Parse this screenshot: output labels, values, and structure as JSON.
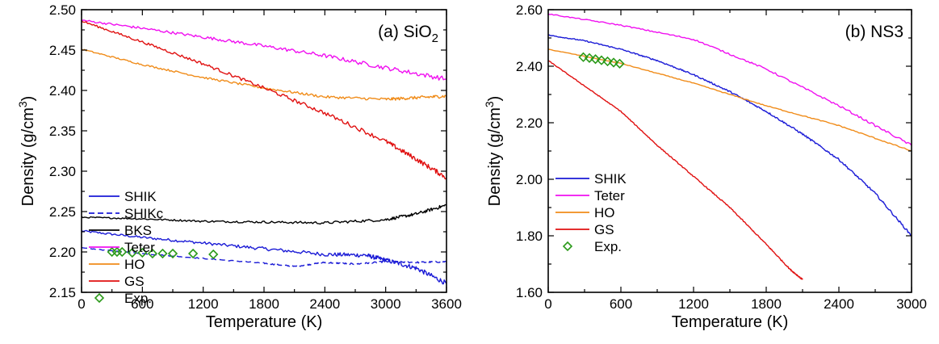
{
  "chart_data": [
    {
      "type": "line",
      "title": "(a) SiO",
      "title_subscript": "2",
      "xlabel": "Temperature (K)",
      "ylabel": "Density (g/cm",
      "ylabel_superscript": "3",
      "ylabel_suffix": ")",
      "xlim": [
        0,
        3600
      ],
      "ylim": [
        2.15,
        2.5
      ],
      "xticks": [
        "0",
        "600",
        "1200",
        "1800",
        "2400",
        "3000",
        "3600"
      ],
      "yticks": [
        "2.15",
        "2.20",
        "2.25",
        "2.30",
        "2.35",
        "2.40",
        "2.45",
        "2.50"
      ],
      "legend_placement": "center-left",
      "series": [
        {
          "name": "SHIK",
          "color": "#1a1ad6",
          "style": "solid",
          "noise": 0.003,
          "x": [
            0,
            600,
            1200,
            1800,
            2400,
            2800,
            3000,
            3300,
            3600
          ],
          "y": [
            2.226,
            2.218,
            2.211,
            2.204,
            2.197,
            2.196,
            2.19,
            2.18,
            2.161
          ]
        },
        {
          "name": "SHIKc",
          "color": "#1a1ad6",
          "style": "dashed",
          "noise": 0.001,
          "x": [
            0,
            600,
            1200,
            1800,
            2100,
            2400,
            2700,
            3000,
            3300,
            3600
          ],
          "y": [
            2.205,
            2.198,
            2.192,
            2.186,
            2.182,
            2.187,
            2.185,
            2.188,
            2.187,
            2.188
          ]
        },
        {
          "name": "BKS",
          "color": "#000000",
          "style": "solid",
          "noise": 0.002,
          "x": [
            0,
            600,
            1200,
            1800,
            2400,
            3000,
            3300,
            3600
          ],
          "y": [
            2.243,
            2.241,
            2.238,
            2.237,
            2.236,
            2.24,
            2.247,
            2.258
          ]
        },
        {
          "name": "Teter",
          "color": "#f010f0",
          "style": "solid",
          "noise": 0.003,
          "x": [
            0,
            600,
            1200,
            1800,
            2400,
            3000,
            3600
          ],
          "y": [
            2.487,
            2.477,
            2.466,
            2.455,
            2.443,
            2.428,
            2.414
          ]
        },
        {
          "name": "HO",
          "color": "#f08c1a",
          "style": "solid",
          "noise": 0.002,
          "x": [
            0,
            600,
            1200,
            1800,
            2400,
            3000,
            3300,
            3600
          ],
          "y": [
            2.451,
            2.432,
            2.416,
            2.403,
            2.392,
            2.389,
            2.391,
            2.393
          ]
        },
        {
          "name": "GS",
          "color": "#e01010",
          "style": "solid",
          "noise": 0.003,
          "x": [
            0,
            600,
            1200,
            1800,
            2400,
            3000,
            3300,
            3600
          ],
          "y": [
            2.486,
            2.46,
            2.433,
            2.403,
            2.372,
            2.337,
            2.315,
            2.292
          ]
        }
      ],
      "experiment": {
        "name": "Exp.",
        "color": "#2b9a1a",
        "x": [
          300,
          350,
          400,
          500,
          600,
          700,
          800,
          900,
          1100,
          1300
        ],
        "y": [
          2.2,
          2.2,
          2.2,
          2.199,
          2.199,
          2.198,
          2.198,
          2.198,
          2.198,
          2.197
        ]
      }
    },
    {
      "type": "line",
      "title": "(b) NS3",
      "xlabel": "Temperature (K)",
      "ylabel": "Density (g/cm",
      "ylabel_superscript": "3",
      "ylabel_suffix": ")",
      "xlim": [
        0,
        3000
      ],
      "ylim": [
        1.6,
        2.6
      ],
      "xticks": [
        "0",
        "600",
        "1200",
        "1800",
        "2400",
        "3000"
      ],
      "yticks": [
        "1.60",
        "1.80",
        "2.00",
        "2.20",
        "2.40",
        "2.60"
      ],
      "legend_placement": "lower-left",
      "series": [
        {
          "name": "SHIK",
          "color": "#1a1ad6",
          "style": "solid",
          "noise": 0.004,
          "x": [
            0,
            300,
            600,
            900,
            1200,
            1500,
            1800,
            2100,
            2400,
            2700,
            3000
          ],
          "y": [
            2.51,
            2.49,
            2.46,
            2.42,
            2.37,
            2.31,
            2.24,
            2.16,
            2.07,
            1.95,
            1.8
          ]
        },
        {
          "name": "Teter",
          "color": "#f010f0",
          "style": "solid",
          "noise": 0.004,
          "x": [
            0,
            600,
            1200,
            1800,
            2400,
            3000
          ],
          "y": [
            2.585,
            2.545,
            2.495,
            2.39,
            2.26,
            2.12
          ]
        },
        {
          "name": "HO",
          "color": "#f08c1a",
          "style": "solid",
          "noise": 0.002,
          "x": [
            0,
            600,
            1200,
            1800,
            2400,
            3000
          ],
          "y": [
            2.46,
            2.41,
            2.34,
            2.26,
            2.19,
            2.1
          ]
        },
        {
          "name": "GS",
          "color": "#e01010",
          "style": "solid",
          "noise": 0.003,
          "x": [
            0,
            300,
            600,
            900,
            1200,
            1500,
            1800,
            2000,
            2100
          ],
          "y": [
            2.42,
            2.33,
            2.24,
            2.12,
            2.01,
            1.9,
            1.77,
            1.68,
            1.645
          ]
        }
      ],
      "experiment": {
        "name": "Exp.",
        "color": "#2b9a1a",
        "x": [
          290,
          340,
          390,
          440,
          490,
          540,
          590
        ],
        "y": [
          2.432,
          2.429,
          2.425,
          2.421,
          2.417,
          2.413,
          2.409
        ]
      }
    }
  ]
}
